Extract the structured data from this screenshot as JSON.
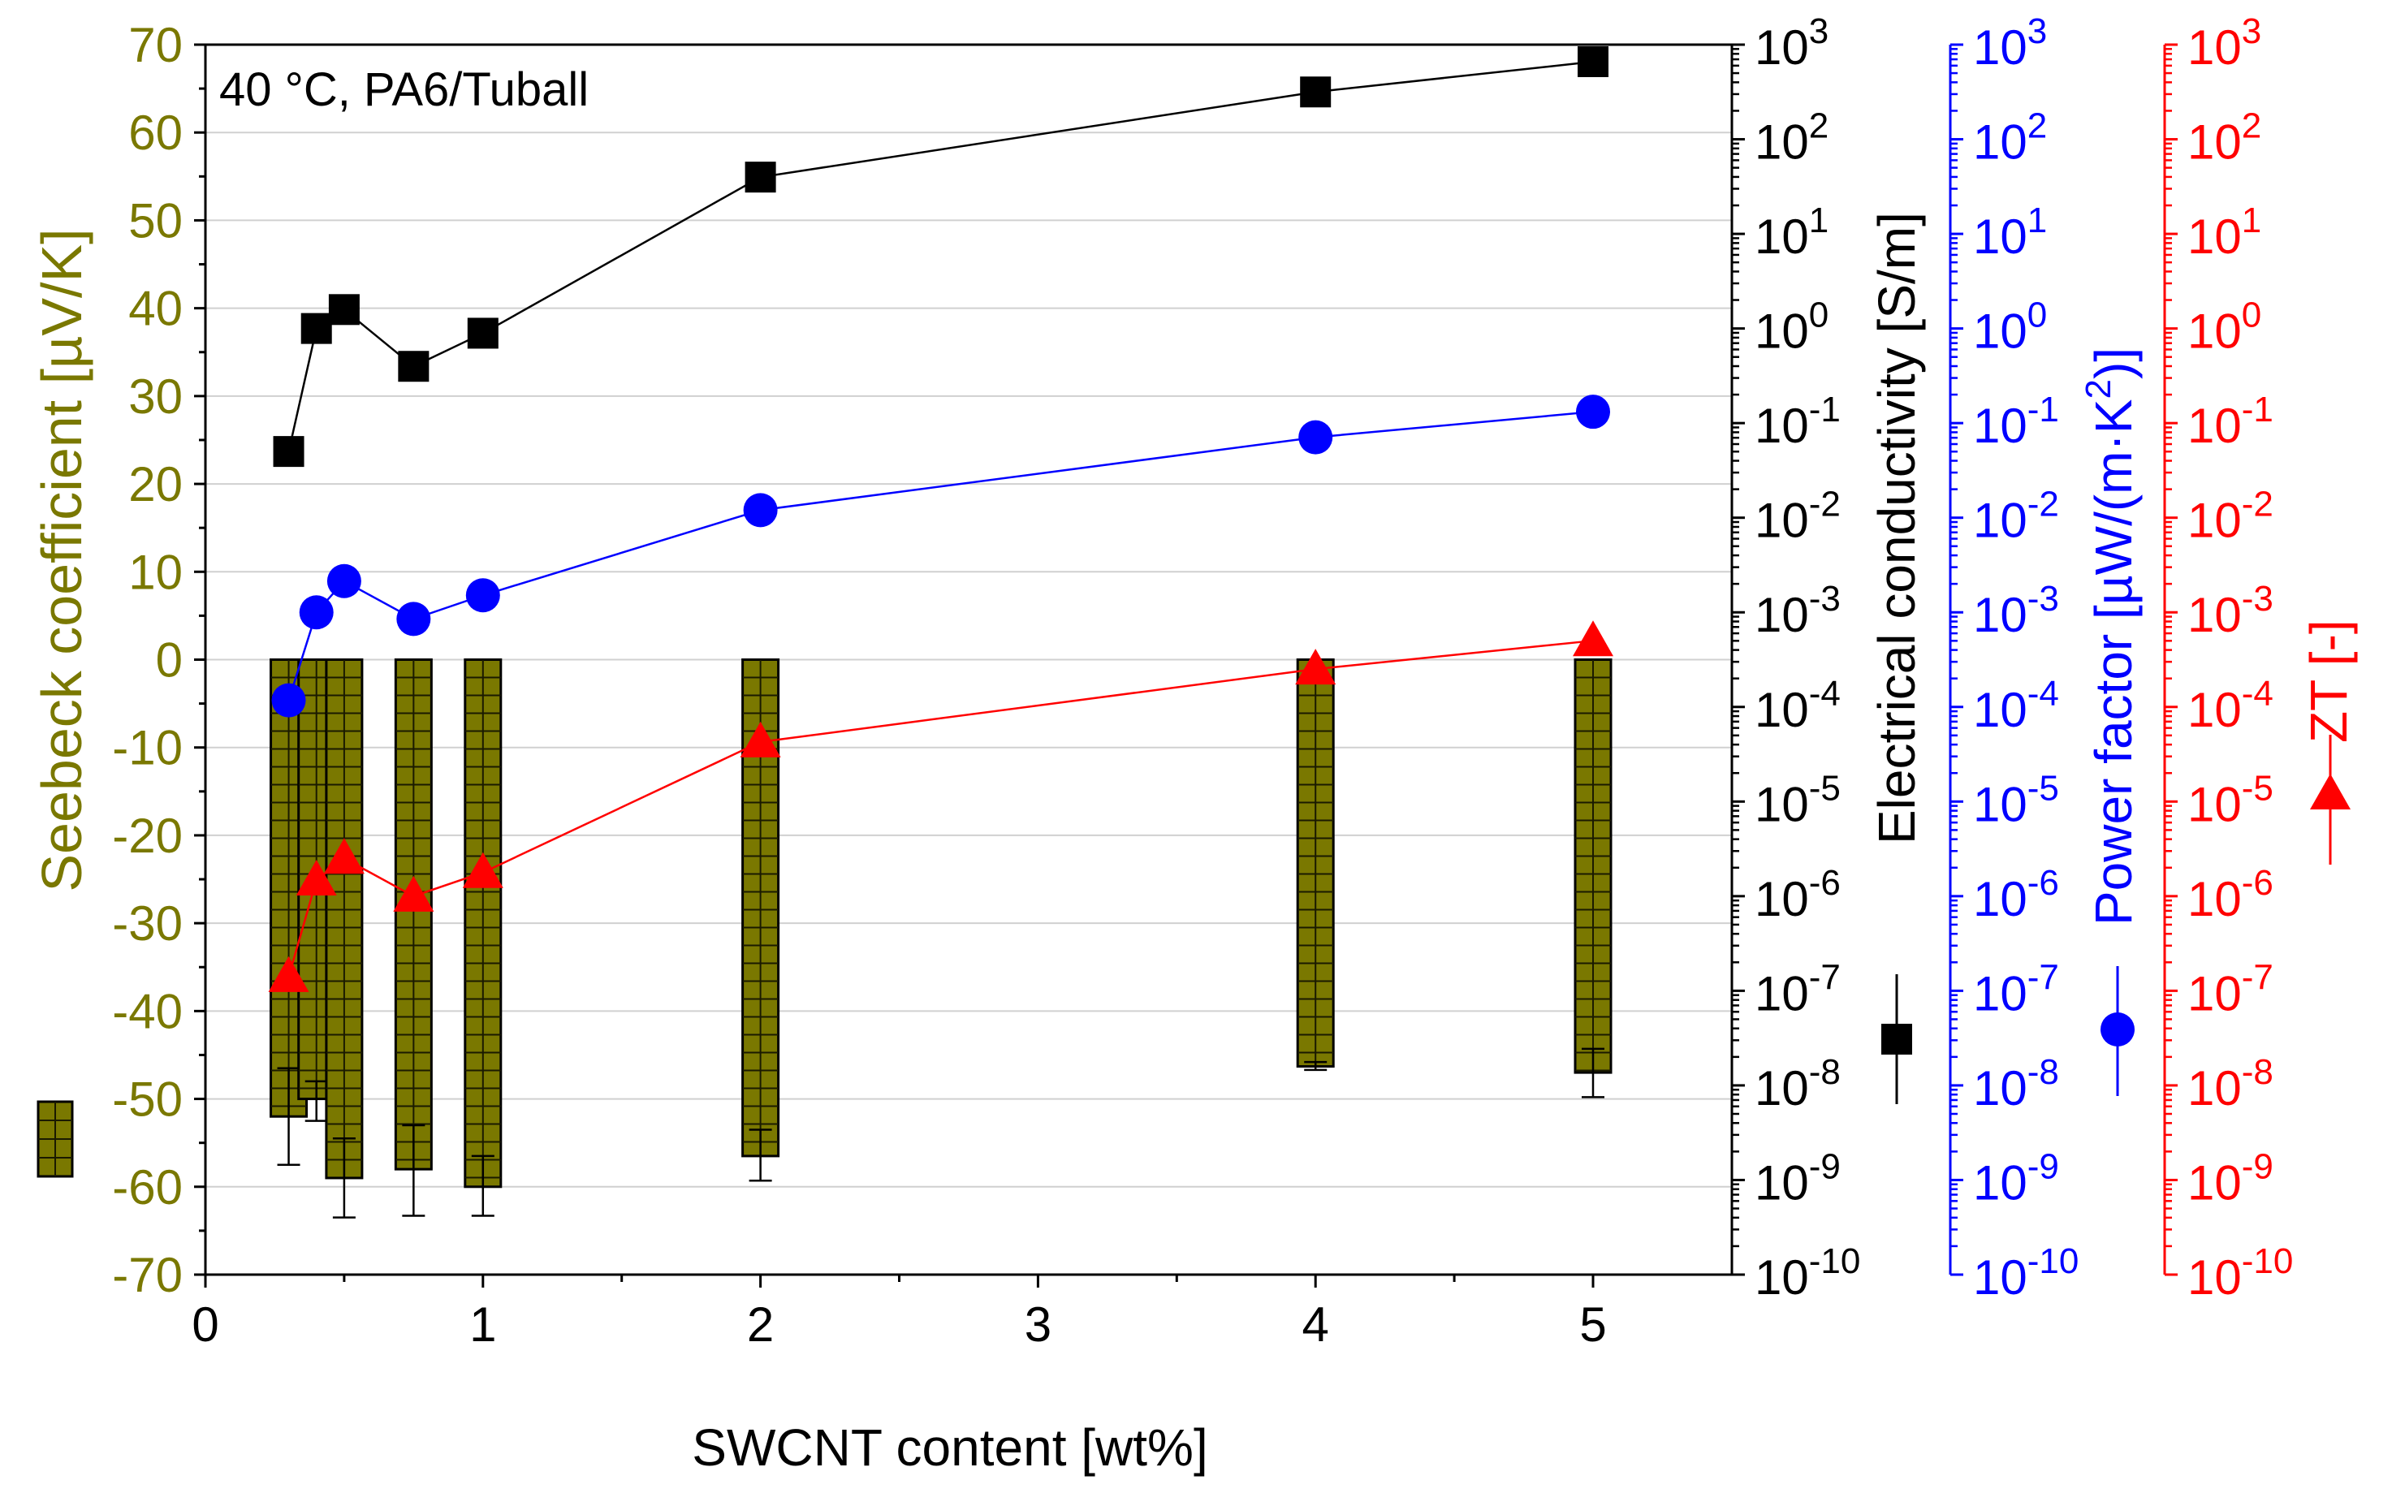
{
  "colors": {
    "seebeck": "#7a7800",
    "seebeck_edge": "#1a1a00",
    "conductivity": "#000000",
    "power_factor": "#0000ff",
    "zt": "#ff0000",
    "grid": "#d0d0d0"
  },
  "chart_data": {
    "type": "bar+line",
    "annotation": "40 °C, PA6/Tuball",
    "x_axis": {
      "label": "SWCNT content [wt%]",
      "min": 0,
      "max": 5.55,
      "ticks": [
        0,
        1,
        2,
        3,
        4,
        5
      ],
      "tick_labels": [
        "0",
        "1",
        "2",
        "3",
        "4",
        "5"
      ]
    },
    "left_axis": {
      "label": "Seebeck coefficient [µV/K]",
      "min": -70,
      "max": 70,
      "ticks": [
        70,
        60,
        50,
        40,
        30,
        20,
        10,
        0,
        -10,
        -20,
        -30,
        -40,
        -50,
        -60,
        -70
      ],
      "tick_labels": [
        "70",
        "60",
        "50",
        "40",
        "30",
        "20",
        "10",
        "0",
        "-10",
        "-20",
        "-30",
        "-40",
        "-50",
        "-60",
        "-70"
      ]
    },
    "log_axes": {
      "min_exp": -10,
      "max_exp": 3,
      "exponents": [
        3,
        2,
        1,
        0,
        -1,
        -2,
        -3,
        -4,
        -5,
        -6,
        -7,
        -8,
        -9,
        -10
      ],
      "base": "10",
      "exp_labels": [
        "3",
        "2",
        "1",
        "0",
        "-1",
        "-2",
        "-3",
        "-4",
        "-5",
        "-6",
        "-7",
        "-8",
        "-9",
        "-10"
      ],
      "conductivity_label": "Electrical conductivity [S/m]",
      "power_factor_label_main": "Power factor [µW/(m·K",
      "power_factor_label_sup": "2",
      "power_factor_label_end": ")]",
      "zt_label": "ZT [-]"
    },
    "series": [
      {
        "name": "Seebeck coefficient",
        "kind": "bar",
        "x": [
          0.3,
          0.4,
          0.5,
          0.75,
          1,
          2,
          4,
          5
        ],
        "values": [
          -52,
          -50,
          -59,
          -58,
          -60,
          -56.5,
          -46.3,
          -47
        ],
        "err_low": [
          -57.5,
          -52.5,
          -63.5,
          -63.3,
          -63.3,
          -59.3,
          -46.7,
          -49.8
        ],
        "err_high": [
          -46.5,
          -48,
          -54.5,
          -53,
          -56.5,
          -53.5,
          -45.8,
          -44.3
        ]
      },
      {
        "name": "Electrical conductivity",
        "kind": "line-square",
        "axis": "log",
        "x": [
          0.3,
          0.4,
          0.5,
          0.75,
          1,
          2,
          4,
          5
        ],
        "log10_values": [
          -1.3,
          0.0,
          0.2,
          -0.4,
          -0.05,
          1.6,
          2.5,
          2.82
        ]
      },
      {
        "name": "Power factor",
        "kind": "line-circle",
        "axis": "log",
        "x": [
          0.3,
          0.4,
          0.5,
          0.75,
          1,
          2,
          4,
          5
        ],
        "log10_values": [
          -3.93,
          -3.0,
          -2.67,
          -3.07,
          -2.82,
          -1.92,
          -1.15,
          -0.88
        ]
      },
      {
        "name": "ZT",
        "kind": "line-triangle",
        "axis": "log",
        "x": [
          0.3,
          0.4,
          0.5,
          0.75,
          1,
          2,
          4,
          5
        ],
        "log10_values": [
          -6.85,
          -5.83,
          -5.6,
          -6.0,
          -5.75,
          -4.37,
          -3.6,
          -3.3
        ]
      }
    ]
  }
}
